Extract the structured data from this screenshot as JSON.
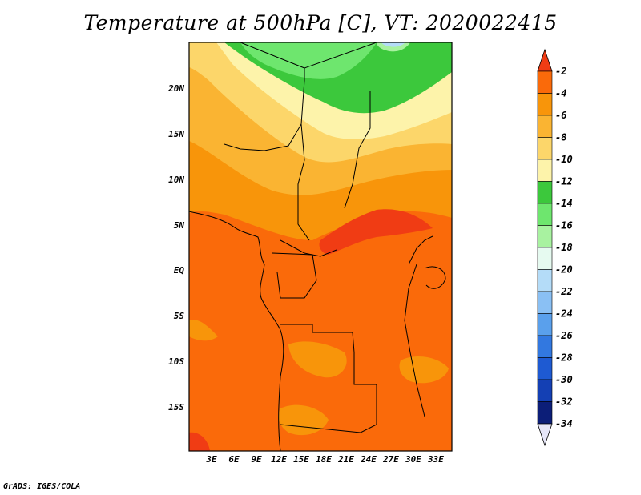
{
  "title": "Temperature at 500hPa [C], VT: 2020022415",
  "credit": "GrADS: IGES/COLA",
  "map": {
    "lat_labels": [
      "20N",
      "15N",
      "10N",
      "5N",
      "EQ",
      "5S",
      "10S",
      "15S"
    ],
    "lon_labels": [
      "3E",
      "6E",
      "9E",
      "12E",
      "15E",
      "18E",
      "21E",
      "24E",
      "27E",
      "30E",
      "33E"
    ]
  },
  "colorbar": {
    "labels": [
      "-2",
      "-4",
      "-6",
      "-8",
      "-10",
      "-12",
      "-14",
      "-16",
      "-18",
      "-20",
      "-22",
      "-24",
      "-26",
      "-28",
      "-30",
      "-32",
      "-34"
    ],
    "colors": [
      "#f03c14",
      "#fa6a0a",
      "#f8950a",
      "#fab432",
      "#fcd66a",
      "#fdf3aa",
      "#3cc83c",
      "#6ee66e",
      "#a8f2a0",
      "#e6faf0",
      "#b4dcf8",
      "#8ac0f4",
      "#5aa0ec",
      "#3278e0",
      "#1e5ad2",
      "#1440b4",
      "#0c1e78",
      "#e6e6f8"
    ]
  },
  "legend_colors": {
    "warmest": "#f03c14",
    "coldest": "#0c1e78"
  }
}
